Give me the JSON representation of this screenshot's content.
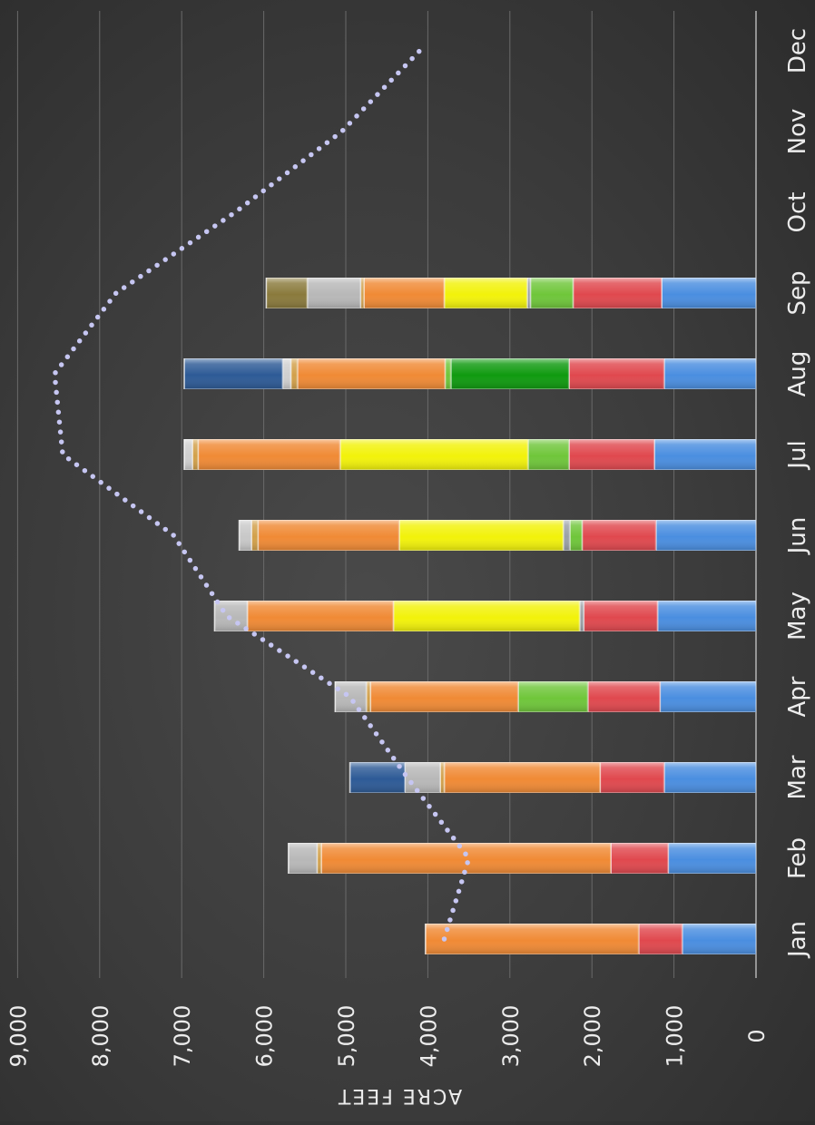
{
  "chart_data": {
    "type": "bar",
    "stacked": true,
    "orientation": "rotated 90 degrees clockwise (bars grow leftward)",
    "categories": [
      "Jan",
      "Feb",
      "Mar",
      "Apr",
      "May",
      "Jun",
      "Jul",
      "Aug",
      "Sep",
      "Oct",
      "Nov",
      "Dec"
    ],
    "ylabel": "ACRE FEET",
    "ylim": [
      0,
      9000
    ],
    "yticks": [
      0,
      1000,
      2000,
      3000,
      4000,
      5000,
      6000,
      7000,
      8000,
      9000
    ],
    "ytick_labels": [
      "0",
      "1,000",
      "2,000",
      "3,000",
      "4,000",
      "5,000",
      "6,000",
      "7,000",
      "8,000",
      "9,000"
    ],
    "grid": true,
    "legend": "none",
    "segments": [
      [
        {
          "value": 900,
          "color": "#4a8ee0"
        },
        {
          "value": 530,
          "color": "#e0484e"
        },
        {
          "value": 2600,
          "color": "#f08a35"
        }
      ],
      [
        {
          "value": 1070,
          "color": "#4a8ee0"
        },
        {
          "value": 700,
          "color": "#e0484e"
        },
        {
          "value": 3530,
          "color": "#f08a35"
        },
        {
          "value": 50,
          "color": "#d2a04a"
        },
        {
          "value": 350,
          "color": "#b8b8b8"
        }
      ],
      [
        {
          "value": 1120,
          "color": "#4a8ee0"
        },
        {
          "value": 780,
          "color": "#e0484e"
        },
        {
          "value": 1900,
          "color": "#f08a35"
        },
        {
          "value": 50,
          "color": "#d2a04a"
        },
        {
          "value": 430,
          "color": "#b8b8b8"
        },
        {
          "value": 670,
          "color": "#2d5a96"
        }
      ],
      [
        {
          "value": 1170,
          "color": "#4a8ee0"
        },
        {
          "value": 880,
          "color": "#e0484e"
        },
        {
          "value": 850,
          "color": "#6fc63a"
        },
        {
          "value": 1800,
          "color": "#f08a35"
        },
        {
          "value": 50,
          "color": "#d2a04a"
        },
        {
          "value": 380,
          "color": "#b8b8b8"
        }
      ],
      [
        {
          "value": 1200,
          "color": "#4a8ee0"
        },
        {
          "value": 900,
          "color": "#e0484e"
        },
        {
          "value": 50,
          "color": "#9aa0a6"
        },
        {
          "value": 2270,
          "color": "#f2f20a"
        },
        {
          "value": 1780,
          "color": "#f08a35"
        },
        {
          "value": 400,
          "color": "#b8b8b8"
        }
      ],
      [
        {
          "value": 1220,
          "color": "#4a8ee0"
        },
        {
          "value": 900,
          "color": "#e0484e"
        },
        {
          "value": 150,
          "color": "#6fc63a"
        },
        {
          "value": 80,
          "color": "#9aa0a6"
        },
        {
          "value": 2000,
          "color": "#f2f20a"
        },
        {
          "value": 1720,
          "color": "#f08a35"
        },
        {
          "value": 80,
          "color": "#d2a04a"
        },
        {
          "value": 150,
          "color": "#c8c8c8"
        }
      ],
      [
        {
          "value": 1240,
          "color": "#4a8ee0"
        },
        {
          "value": 1040,
          "color": "#e0484e"
        },
        {
          "value": 500,
          "color": "#6fc63a"
        },
        {
          "value": 2290,
          "color": "#f2f20a"
        },
        {
          "value": 1730,
          "color": "#f08a35"
        },
        {
          "value": 70,
          "color": "#d2a04a"
        },
        {
          "value": 100,
          "color": "#cfcfcf"
        }
      ],
      [
        {
          "value": 1120,
          "color": "#4a8ee0"
        },
        {
          "value": 1160,
          "color": "#e0484e"
        },
        {
          "value": 1440,
          "color": "#0f9a0f"
        },
        {
          "value": 70,
          "color": "#6fc63a"
        },
        {
          "value": 1800,
          "color": "#f08a35"
        },
        {
          "value": 80,
          "color": "#d2a04a"
        },
        {
          "value": 100,
          "color": "#cfcfcf"
        },
        {
          "value": 1200,
          "color": "#2d5a96"
        }
      ],
      [
        {
          "value": 1150,
          "color": "#4a8ee0"
        },
        {
          "value": 1080,
          "color": "#e0484e"
        },
        {
          "value": 520,
          "color": "#6fc63a"
        },
        {
          "value": 40,
          "color": "#9aa0a6"
        },
        {
          "value": 1010,
          "color": "#f2f20a"
        },
        {
          "value": 980,
          "color": "#f08a35"
        },
        {
          "value": 40,
          "color": "#d2a04a"
        },
        {
          "value": 650,
          "color": "#b8b8b8"
        },
        {
          "value": 500,
          "color": "#8a7a3c"
        }
      ],
      [],
      [],
      []
    ],
    "line": {
      "style": "dotted",
      "color": "#c6c6f2",
      "values": [
        3800,
        3500,
        4250,
        4950,
        6450,
        7100,
        8450,
        8550,
        7800,
        6350,
        5050,
        4100
      ]
    }
  }
}
